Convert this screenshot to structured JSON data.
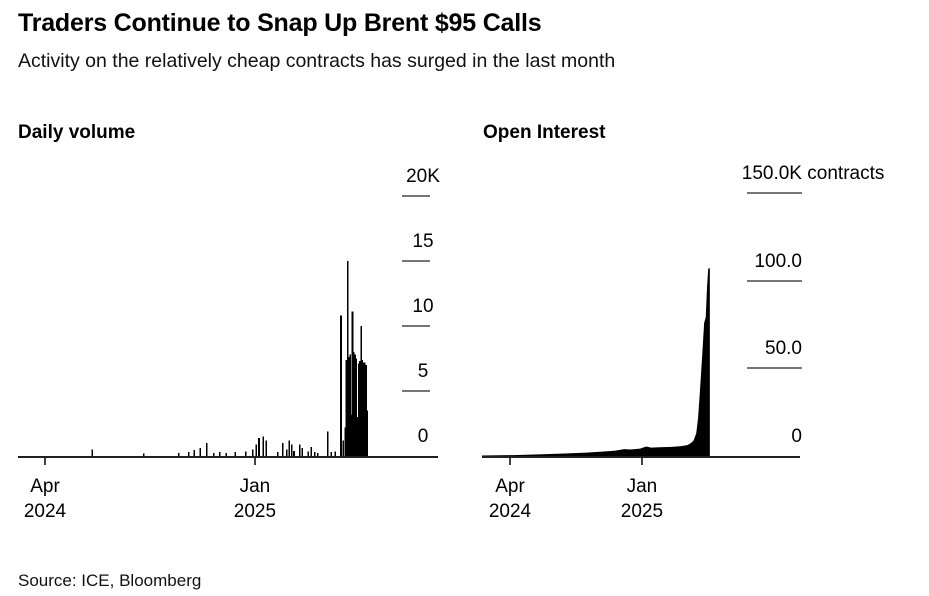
{
  "page": {
    "title": "Traders Continue to Snap Up Brent $95 Calls",
    "subtitle": "Activity on the relatively cheap contracts has surged in the last month",
    "source": "Source: ICE, Bloomberg"
  },
  "colors": {
    "background": "#ffffff",
    "text": "#000000",
    "bar": "#000000",
    "area": "#000000",
    "baseline": "#1f1f1f",
    "y_tick": "#757575",
    "x_tick": "#414141"
  },
  "chart_data": [
    {
      "type": "bar",
      "title": "Daily volume",
      "value_unit": "thousand contracts",
      "ylim": [
        0,
        22
      ],
      "yticks": [
        {
          "label": "20K",
          "value": 20
        },
        {
          "label": "15",
          "value": 15
        },
        {
          "label": "10",
          "value": 10
        },
        {
          "label": "5",
          "value": 5
        },
        {
          "label": "0",
          "value": 0
        }
      ],
      "xticks": [
        {
          "line1": "Apr",
          "line2": "2024",
          "frac": 0.0655
        },
        {
          "line1": "Jan",
          "line2": "2025",
          "frac": 0.575
        }
      ],
      "grid": false,
      "legend": false,
      "points": [
        {
          "x": 0.18,
          "v": 0.5
        },
        {
          "x": 0.305,
          "v": 0.2
        },
        {
          "x": 0.39,
          "v": 0.25
        },
        {
          "x": 0.414,
          "v": 0.3
        },
        {
          "x": 0.428,
          "v": 0.45
        },
        {
          "x": 0.442,
          "v": 0.6
        },
        {
          "x": 0.458,
          "v": 1.0
        },
        {
          "x": 0.475,
          "v": 0.25
        },
        {
          "x": 0.49,
          "v": 0.3
        },
        {
          "x": 0.505,
          "v": 0.25
        },
        {
          "x": 0.527,
          "v": 0.3
        },
        {
          "x": 0.553,
          "v": 0.35
        },
        {
          "x": 0.57,
          "v": 0.5
        },
        {
          "x": 0.578,
          "v": 0.9
        },
        {
          "x": 0.585,
          "v": 1.4
        },
        {
          "x": 0.595,
          "v": 1.5
        },
        {
          "x": 0.603,
          "v": 1.2
        },
        {
          "x": 0.63,
          "v": 0.3
        },
        {
          "x": 0.643,
          "v": 1.0
        },
        {
          "x": 0.652,
          "v": 0.5
        },
        {
          "x": 0.658,
          "v": 1.2
        },
        {
          "x": 0.664,
          "v": 0.9
        },
        {
          "x": 0.67,
          "v": 0.4
        },
        {
          "x": 0.684,
          "v": 0.9
        },
        {
          "x": 0.69,
          "v": 0.6
        },
        {
          "x": 0.704,
          "v": 0.35
        },
        {
          "x": 0.712,
          "v": 0.7
        },
        {
          "x": 0.72,
          "v": 0.3
        },
        {
          "x": 0.728,
          "v": 0.25
        },
        {
          "x": 0.752,
          "v": 1.9
        },
        {
          "x": 0.76,
          "v": 0.3
        },
        {
          "x": 0.77,
          "v": 0.35
        },
        {
          "x": 0.784,
          "v": 10.8
        },
        {
          "x": 0.789,
          "v": 1.2
        },
        {
          "x": 0.794,
          "v": 2.2
        },
        {
          "x": 0.797,
          "v": 7.4
        },
        {
          "x": 0.8,
          "v": 15.0
        },
        {
          "x": 0.803,
          "v": 7.6
        },
        {
          "x": 0.806,
          "v": 7.8
        },
        {
          "x": 0.809,
          "v": 3.2
        },
        {
          "x": 0.812,
          "v": 11.1
        },
        {
          "x": 0.815,
          "v": 8.0
        },
        {
          "x": 0.818,
          "v": 7.8
        },
        {
          "x": 0.821,
          "v": 7.5
        },
        {
          "x": 0.824,
          "v": 3.0
        },
        {
          "x": 0.827,
          "v": 7.1
        },
        {
          "x": 0.83,
          "v": 7.3
        },
        {
          "x": 0.833,
          "v": 10.0
        },
        {
          "x": 0.836,
          "v": 7.4
        },
        {
          "x": 0.839,
          "v": 7.2
        },
        {
          "x": 0.842,
          "v": 7.2
        },
        {
          "x": 0.845,
          "v": 7.0
        },
        {
          "x": 0.848,
          "v": 3.5
        }
      ]
    },
    {
      "type": "area",
      "title": "Open Interest",
      "value_unit": "thousand contracts",
      "ylim": [
        0,
        163
      ],
      "yticks": [
        {
          "label": "150.0K",
          "suffix": " contracts",
          "value": 150
        },
        {
          "label": "100.0",
          "value": 100
        },
        {
          "label": "50.0",
          "value": 50
        },
        {
          "label": "0",
          "value": 0
        }
      ],
      "xticks": [
        {
          "line1": "Apr",
          "line2": "2024",
          "frac": 0.0886
        },
        {
          "line1": "Jan",
          "line2": "2025",
          "frac": 0.506
        }
      ],
      "grid": false,
      "legend": false,
      "points": [
        {
          "x": 0.0,
          "v": 0.3
        },
        {
          "x": 0.1,
          "v": 0.5
        },
        {
          "x": 0.18,
          "v": 0.9
        },
        {
          "x": 0.26,
          "v": 1.4
        },
        {
          "x": 0.33,
          "v": 1.9
        },
        {
          "x": 0.38,
          "v": 2.5
        },
        {
          "x": 0.42,
          "v": 3.0
        },
        {
          "x": 0.45,
          "v": 3.9
        },
        {
          "x": 0.47,
          "v": 3.7
        },
        {
          "x": 0.5,
          "v": 4.2
        },
        {
          "x": 0.52,
          "v": 5.4
        },
        {
          "x": 0.535,
          "v": 4.8
        },
        {
          "x": 0.56,
          "v": 5.0
        },
        {
          "x": 0.6,
          "v": 5.2
        },
        {
          "x": 0.63,
          "v": 5.6
        },
        {
          "x": 0.65,
          "v": 6.2
        },
        {
          "x": 0.662,
          "v": 7.5
        },
        {
          "x": 0.67,
          "v": 9.0
        },
        {
          "x": 0.678,
          "v": 13
        },
        {
          "x": 0.684,
          "v": 22
        },
        {
          "x": 0.69,
          "v": 38
        },
        {
          "x": 0.697,
          "v": 58
        },
        {
          "x": 0.703,
          "v": 76
        },
        {
          "x": 0.708,
          "v": 79
        },
        {
          "x": 0.712,
          "v": 96
        },
        {
          "x": 0.716,
          "v": 107
        },
        {
          "x": 0.721,
          "v": 107
        }
      ]
    }
  ]
}
